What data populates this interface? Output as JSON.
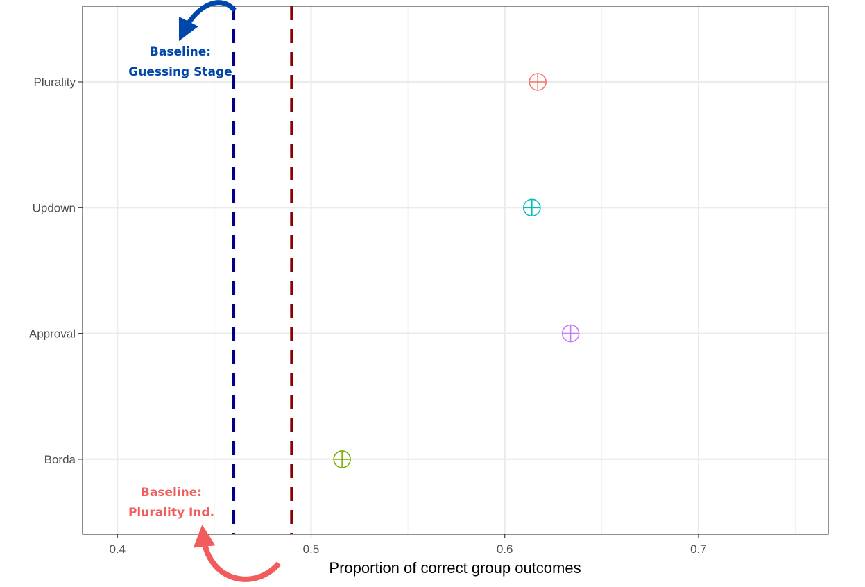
{
  "chart_data": {
    "type": "scatter",
    "xlabel": "Proportion of correct group outcomes",
    "ylabel": "",
    "xlim": [
      0.382,
      0.767
    ],
    "xticks": [
      0.4,
      0.5,
      0.6,
      0.7
    ],
    "xtick_labels": [
      "0.4",
      "0.5",
      "0.6",
      "0.7"
    ],
    "categories": [
      "Plurality",
      "Updown",
      "Approval",
      "Borda"
    ],
    "points": [
      {
        "category": "Plurality",
        "x": 0.617,
        "color": "#F8766D"
      },
      {
        "category": "Updown",
        "x": 0.614,
        "color": "#00BFC4"
      },
      {
        "category": "Approval",
        "x": 0.634,
        "color": "#C77CFF"
      },
      {
        "category": "Borda",
        "x": 0.516,
        "color": "#7CAE00"
      }
    ],
    "reference_lines": [
      {
        "x": 0.46,
        "color": "#00008B",
        "style": "dashed"
      },
      {
        "x": 0.49,
        "color": "#8B0000",
        "style": "dashed"
      }
    ],
    "annotations": [
      {
        "lines": [
          "Baseline:",
          "Guessing Stage"
        ],
        "color": "#0047AB"
      },
      {
        "lines": [
          "Baseline:",
          "Plurality Ind."
        ],
        "color": "#F25C5C"
      }
    ],
    "grid": true,
    "legend": "none"
  }
}
